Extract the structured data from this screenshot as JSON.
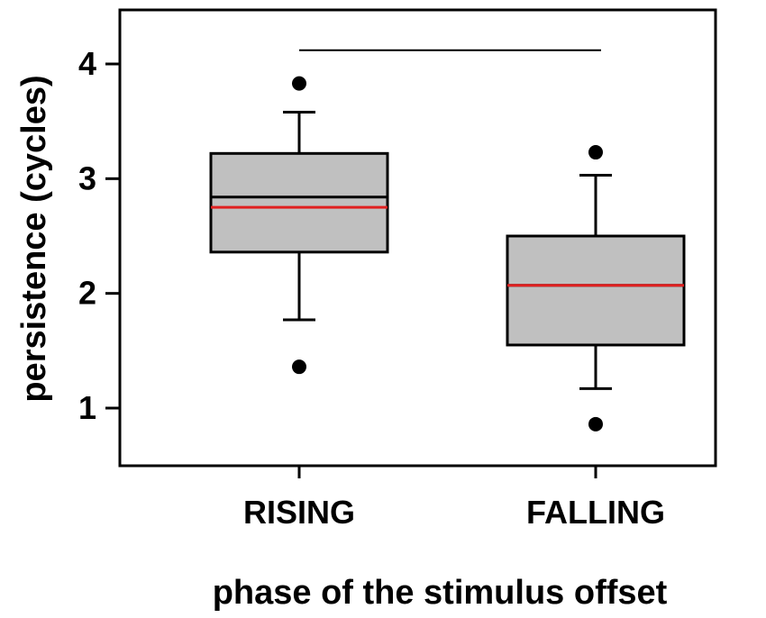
{
  "chart_data": {
    "type": "box",
    "title": "",
    "xlabel": "phase of the stimulus offset",
    "ylabel": "persistence (cycles)",
    "ylim": [
      0.5,
      4.5
    ],
    "yticks": [
      1,
      2,
      3,
      4
    ],
    "categories": [
      "RISING",
      "FALLING"
    ],
    "boxes": [
      {
        "category": "RISING",
        "whisker_low": 1.77,
        "q1": 2.36,
        "median": 2.84,
        "mean": 2.75,
        "q3": 3.22,
        "whisker_high": 3.58,
        "outliers": [
          1.36,
          3.83
        ]
      },
      {
        "category": "FALLING",
        "whisker_low": 1.17,
        "q1": 1.55,
        "median": 2.07,
        "mean": 2.07,
        "q3": 2.5,
        "whisker_high": 3.03,
        "outliers": [
          0.86,
          3.23
        ]
      }
    ],
    "significance_bar": {
      "from": "RISING",
      "to": "FALLING",
      "y": 4.12
    },
    "grid": false,
    "colors": {
      "box_fill": "#c0c0c0",
      "mean_line": "#e02020",
      "median_line": "#000000"
    }
  }
}
